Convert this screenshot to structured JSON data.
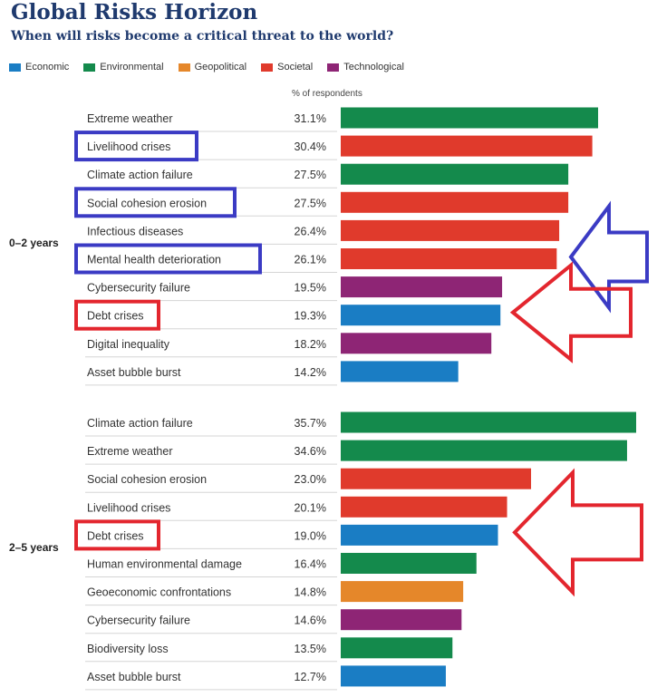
{
  "title": "Global Risks Horizon",
  "subtitle": "When will risks become a critical threat to the world?",
  "chart_data": {
    "type": "bar",
    "orientation": "horizontal",
    "title": "Global Risks Horizon",
    "subtitle": "When will risks become a critical threat to the world?",
    "value_header": "% of respondents",
    "xlim": [
      0,
      36
    ],
    "grid": false,
    "legend_position": "top-left",
    "legend": [
      {
        "name": "Economic",
        "color": "#1a7dc4"
      },
      {
        "name": "Environmental",
        "color": "#148a4c"
      },
      {
        "name": "Geopolitical",
        "color": "#e5872a"
      },
      {
        "name": "Societal",
        "color": "#e03a2c"
      },
      {
        "name": "Technological",
        "color": "#8e2575"
      }
    ],
    "groups": [
      {
        "label": "0–2 years",
        "items": [
          {
            "label": "Extreme weather",
            "value": 31.1,
            "value_label": "31.1%",
            "category": "Environmental",
            "highlight": ""
          },
          {
            "label": "Livelihood crises",
            "value": 30.4,
            "value_label": "30.4%",
            "category": "Societal",
            "highlight": "blue"
          },
          {
            "label": "Climate action failure",
            "value": 27.5,
            "value_label": "27.5%",
            "category": "Environmental",
            "highlight": ""
          },
          {
            "label": "Social cohesion erosion",
            "value": 27.5,
            "value_label": "27.5%",
            "category": "Societal",
            "highlight": "blue"
          },
          {
            "label": "Infectious diseases",
            "value": 26.4,
            "value_label": "26.4%",
            "category": "Societal",
            "highlight": ""
          },
          {
            "label": "Mental health deterioration",
            "value": 26.1,
            "value_label": "26.1%",
            "category": "Societal",
            "highlight": "blue"
          },
          {
            "label": "Cybersecurity failure",
            "value": 19.5,
            "value_label": "19.5%",
            "category": "Technological",
            "highlight": ""
          },
          {
            "label": "Debt crises",
            "value": 19.3,
            "value_label": "19.3%",
            "category": "Economic",
            "highlight": "red"
          },
          {
            "label": "Digital inequality",
            "value": 18.2,
            "value_label": "18.2%",
            "category": "Technological",
            "highlight": ""
          },
          {
            "label": "Asset bubble burst",
            "value": 14.2,
            "value_label": "14.2%",
            "category": "Economic",
            "highlight": ""
          }
        ]
      },
      {
        "label": "2–5 years",
        "items": [
          {
            "label": "Climate action failure",
            "value": 35.7,
            "value_label": "35.7%",
            "category": "Environmental",
            "highlight": ""
          },
          {
            "label": "Extreme weather",
            "value": 34.6,
            "value_label": "34.6%",
            "category": "Environmental",
            "highlight": ""
          },
          {
            "label": "Social cohesion erosion",
            "value": 23.0,
            "value_label": "23.0%",
            "category": "Societal",
            "highlight": ""
          },
          {
            "label": "Livelihood crises",
            "value": 20.1,
            "value_label": "20.1%",
            "category": "Societal",
            "highlight": ""
          },
          {
            "label": "Debt crises",
            "value": 19.0,
            "value_label": "19.0%",
            "category": "Economic",
            "highlight": "red"
          },
          {
            "label": "Human environmental damage",
            "value": 16.4,
            "value_label": "16.4%",
            "category": "Environmental",
            "highlight": ""
          },
          {
            "label": "Geoeconomic confrontations",
            "value": 14.8,
            "value_label": "14.8%",
            "category": "Geopolitical",
            "highlight": ""
          },
          {
            "label": "Cybersecurity failure",
            "value": 14.6,
            "value_label": "14.6%",
            "category": "Technological",
            "highlight": ""
          },
          {
            "label": "Biodiversity loss",
            "value": 13.5,
            "value_label": "13.5%",
            "category": "Environmental",
            "highlight": ""
          },
          {
            "label": "Asset bubble burst",
            "value": 12.7,
            "value_label": "12.7%",
            "category": "Economic",
            "highlight": ""
          }
        ]
      }
    ],
    "annotations": [
      {
        "type": "arrow",
        "color": "#3b3bc4",
        "points_to": "0–2 years: Livelihood crises, Social cohesion erosion, Mental health deterioration"
      },
      {
        "type": "arrow",
        "color": "#e3262e",
        "points_to": "0–2 years: Debt crises"
      },
      {
        "type": "arrow",
        "color": "#e3262e",
        "points_to": "2–5 years: Debt crises"
      }
    ]
  },
  "colors": {
    "title": "#1f3a6e",
    "annotation_blue": "#3b3bc4",
    "annotation_red": "#e3262e"
  }
}
